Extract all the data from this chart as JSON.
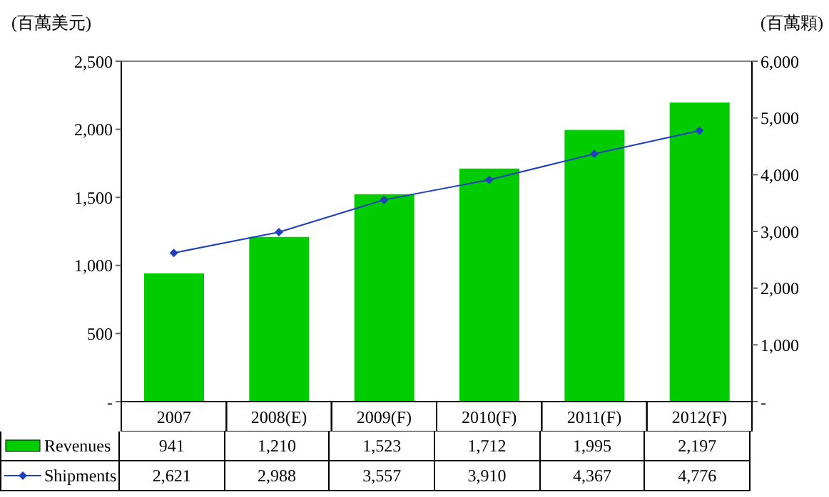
{
  "chart_data": {
    "type": "bar",
    "ylabel": "(百萬美元)",
    "y2label": "(百萬顆)",
    "categories": [
      "2007",
      "2008(E)",
      "2009(F)",
      "2010(F)",
      "2011(F)",
      "2012(F)"
    ],
    "series": [
      {
        "name": "Revenues",
        "color": "#00cc00",
        "values": [
          941,
          1210,
          1523,
          1712,
          1995,
          2197
        ],
        "value_labels": [
          "941",
          "1,210",
          "1,523",
          "1,712",
          "1,995",
          "2,197"
        ]
      },
      {
        "name": "Shipments",
        "type": "line",
        "axis": "y2",
        "color": "#1f3fbf",
        "marker": "diamond",
        "values": [
          2621,
          2988,
          3557,
          3910,
          4367,
          4776
        ],
        "value_labels": [
          "2,621",
          "2,988",
          "3,557",
          "3,910",
          "4,367",
          "4,776"
        ]
      }
    ],
    "ylim": [
      0,
      2500
    ],
    "yticks": [
      {
        "value": 0,
        "label": "-"
      },
      500,
      {
        "value": 1000,
        "label": "1,000"
      },
      {
        "value": 1500,
        "label": "1,500"
      },
      {
        "value": 2000,
        "label": "2,000"
      },
      {
        "value": 2500,
        "label": "2,500"
      }
    ],
    "y2lim": [
      0,
      6000
    ],
    "y2ticks": [
      {
        "value": 0,
        "label": "-"
      },
      {
        "value": 1000,
        "label": "1,000"
      },
      {
        "value": 2000,
        "label": "2,000"
      },
      {
        "value": 3000,
        "label": "3,000"
      },
      {
        "value": 4000,
        "label": "4,000"
      },
      {
        "value": 5000,
        "label": "5,000"
      },
      {
        "value": 6000,
        "label": "6,000"
      }
    ],
    "legend": "bottom"
  }
}
